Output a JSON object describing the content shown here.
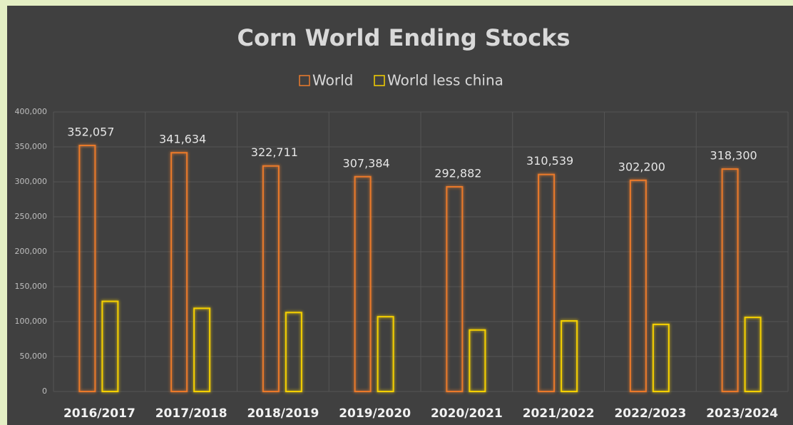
{
  "chart_data": {
    "type": "bar",
    "title": "Corn World Ending Stocks",
    "categories": [
      "2016/2017",
      "2017/2018",
      "2018/2019",
      "2019/2020",
      "2020/2021",
      "2021/2022",
      "2022/2023",
      "2023/2024"
    ],
    "series": [
      {
        "name": "World",
        "color": "#ea7a2c",
        "values": [
          352057,
          341634,
          322711,
          307384,
          292882,
          310539,
          302200,
          318300
        ],
        "value_labels": [
          "352,057",
          "341,634",
          "322,711",
          "307,384",
          "292,882",
          "310,539",
          "302,200",
          "318,300"
        ]
      },
      {
        "name": "World less china",
        "color": "#f5d000",
        "values": [
          129000,
          119000,
          113000,
          107000,
          88000,
          101000,
          96000,
          106000
        ]
      }
    ],
    "ylim": [
      0,
      400000
    ],
    "yticks": [
      0,
      {
        "value": 50000,
        "label": "50,000"
      },
      {
        "value": 100000,
        "label": "100,000"
      },
      {
        "value": 150000,
        "label": "150,000"
      },
      {
        "value": 200000,
        "label": "200,000"
      },
      {
        "value": 250000,
        "label": "250,000"
      },
      {
        "value": 300000,
        "label": "300,000"
      },
      {
        "value": 350000,
        "label": "350,000"
      },
      {
        "value": 400000,
        "label": "400,000"
      }
    ],
    "grid": true
  }
}
